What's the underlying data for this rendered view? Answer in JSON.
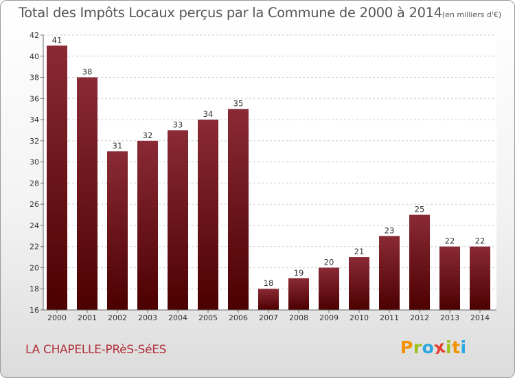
{
  "chart_data": {
    "type": "bar",
    "title": "Total des Impôts Locaux perçus par la Commune de 2000 à 2014",
    "title_unit": "(en milliers d'€)",
    "categories": [
      "2000",
      "2001",
      "2002",
      "2003",
      "2004",
      "2005",
      "2006",
      "2007",
      "2008",
      "2009",
      "2010",
      "2011",
      "2012",
      "2013",
      "2014"
    ],
    "values": [
      41,
      38,
      31,
      32,
      33,
      34,
      35,
      18,
      19,
      20,
      21,
      23,
      25,
      22,
      22
    ],
    "ylim": [
      16,
      42
    ],
    "yticks": [
      16,
      18,
      20,
      22,
      24,
      26,
      28,
      30,
      32,
      34,
      36,
      38,
      40,
      42
    ],
    "xlabel": "",
    "ylabel": "",
    "grid": true,
    "bar_color_top": "#8a2a35",
    "bar_color_bottom": "#4c0000"
  },
  "commune_name": "LA CHAPELLE-PRèS-SéES",
  "logo": {
    "letters": [
      "P",
      "r",
      "o",
      "x",
      "i",
      "t",
      "i"
    ],
    "colors": [
      "#f39200",
      "#9bc31c",
      "#29a8e0",
      "#e53e30",
      "#9bc31c",
      "#f39200",
      "#29a8e0"
    ]
  }
}
